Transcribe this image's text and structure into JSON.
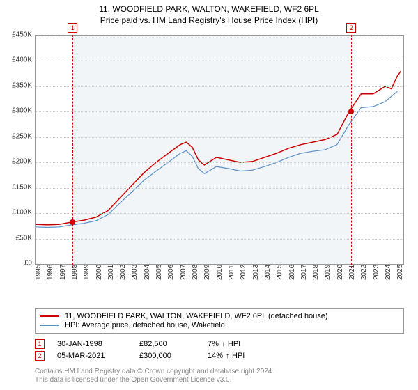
{
  "title_line1": "11, WOODFIELD PARK, WALTON, WAKEFIELD, WF2 6PL",
  "title_line2": "Price paid vs. HM Land Registry's House Price Index (HPI)",
  "chart": {
    "type": "line",
    "background_color": "#ffffff",
    "grid_color": "#cccccc",
    "border_color": "#999999",
    "shade_color": "rgba(150,170,200,0.12)",
    "x_years": [
      1995,
      1996,
      1997,
      1998,
      1999,
      2000,
      2001,
      2002,
      2003,
      2004,
      2005,
      2006,
      2007,
      2008,
      2009,
      2010,
      2011,
      2012,
      2013,
      2014,
      2015,
      2016,
      2017,
      2018,
      2019,
      2020,
      2021,
      2022,
      2023,
      2024,
      2025
    ],
    "y_ticks": [
      0,
      50000,
      100000,
      150000,
      200000,
      250000,
      300000,
      350000,
      400000,
      450000
    ],
    "y_tick_labels": [
      "£0",
      "£50K",
      "£100K",
      "£150K",
      "£200K",
      "£250K",
      "£300K",
      "£350K",
      "£400K",
      "£450K"
    ],
    "ylim": [
      0,
      450000
    ],
    "xlim": [
      1995,
      2025.5
    ],
    "label_fontsize": 10,
    "series": [
      {
        "name": "property",
        "label": "11, WOODFIELD PARK, WALTON, WAKEFIELD, WF2 6PL (detached house)",
        "color": "#cc0000",
        "line_width": 1.5,
        "x": [
          1995,
          1996,
          1997,
          1998,
          1999,
          2000,
          2001,
          2002,
          2003,
          2004,
          2005,
          2006,
          2007,
          2007.5,
          2008,
          2008.5,
          2009,
          2010,
          2011,
          2012,
          2013,
          2014,
          2015,
          2016,
          2017,
          2018,
          2019,
          2020,
          2021,
          2022,
          2023,
          2024,
          2024.5,
          2025,
          2025.3
        ],
        "y": [
          78000,
          77000,
          78000,
          82500,
          86000,
          92000,
          105000,
          130000,
          155000,
          180000,
          200000,
          218000,
          235000,
          240000,
          230000,
          205000,
          195000,
          210000,
          205000,
          200000,
          202000,
          210000,
          218000,
          228000,
          235000,
          240000,
          245000,
          255000,
          300000,
          335000,
          335000,
          350000,
          345000,
          370000,
          380000
        ]
      },
      {
        "name": "hpi",
        "label": "HPI: Average price, detached house, Wakefield",
        "color": "#5b8fc7",
        "line_width": 1.2,
        "x": [
          1995,
          1996,
          1997,
          1998,
          1999,
          2000,
          2001,
          2002,
          2003,
          2004,
          2005,
          2006,
          2007,
          2007.5,
          2008,
          2008.5,
          2009,
          2010,
          2011,
          2012,
          2013,
          2014,
          2015,
          2016,
          2017,
          2018,
          2019,
          2020,
          2021,
          2022,
          2023,
          2024,
          2025
        ],
        "y": [
          73000,
          72000,
          73000,
          77000,
          80000,
          85000,
          97000,
          120000,
          142000,
          165000,
          183000,
          200000,
          218000,
          223000,
          212000,
          188000,
          178000,
          192000,
          188000,
          183000,
          185000,
          192000,
          200000,
          210000,
          218000,
          222000,
          225000,
          235000,
          275000,
          308000,
          310000,
          320000,
          340000
        ]
      }
    ],
    "markers": [
      {
        "id": "1",
        "x": 1998.08,
        "y": 82500,
        "line_color": "#cc0000",
        "box_color": "#cc0000"
      },
      {
        "id": "2",
        "x": 2021.18,
        "y": 300000,
        "line_color": "#cc0000",
        "box_color": "#cc0000"
      }
    ]
  },
  "legend": {
    "border_color": "#999999",
    "items": [
      {
        "color": "#cc0000",
        "label": "11, WOODFIELD PARK, WALTON, WAKEFIELD, WF2 6PL (detached house)"
      },
      {
        "color": "#5b8fc7",
        "label": "HPI: Average price, detached house, Wakefield"
      }
    ]
  },
  "transactions": [
    {
      "id": "1",
      "date": "30-JAN-1998",
      "price": "£82,500",
      "pct": "7%",
      "direction": "↑",
      "suffix": "HPI",
      "color": "#cc0000"
    },
    {
      "id": "2",
      "date": "05-MAR-2021",
      "price": "£300,000",
      "pct": "14%",
      "direction": "↑",
      "suffix": "HPI",
      "color": "#cc0000"
    }
  ],
  "footnote_line1": "Contains HM Land Registry data © Crown copyright and database right 2024.",
  "footnote_line2": "This data is licensed under the Open Government Licence v3.0.",
  "footnote_color": "#888888"
}
